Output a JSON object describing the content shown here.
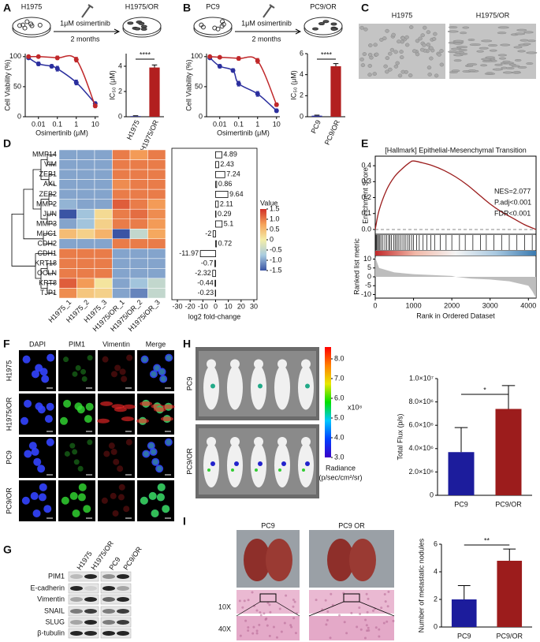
{
  "A": {
    "label": "A",
    "schematic": {
      "from": "H1975",
      "treatment": "1μM osimertinib",
      "duration": "2 months",
      "to": "H1975/OR"
    },
    "viability": {
      "type": "line",
      "ylabel": "Cell Viability (%)",
      "xlabel": "Osimertinib (μM)",
      "xlog": true,
      "xlim": [
        0.002,
        15
      ],
      "ylim": [
        0,
        105
      ],
      "xticks": [
        0.01,
        0.1,
        1,
        10
      ],
      "yticks": [
        0,
        50,
        100
      ],
      "series": [
        {
          "color": "#2b2f9e",
          "x": [
            0.003,
            0.01,
            0.05,
            0.1,
            1,
            10
          ],
          "values": [
            98,
            88,
            84,
            80,
            57,
            22
          ],
          "errors": [
            2,
            3,
            3,
            4,
            4,
            3
          ]
        },
        {
          "color": "#c0282a",
          "x": [
            0.003,
            0.01,
            0.1,
            1,
            10
          ],
          "values": [
            100,
            100,
            98,
            95,
            18
          ],
          "errors": [
            2,
            2,
            3,
            4,
            3
          ]
        }
      ]
    },
    "ic50": {
      "type": "bar",
      "ylabel": "IC₅₀ (μM)",
      "categories": [
        "H1975",
        "H1975/OR"
      ],
      "values": [
        0.05,
        3.9
      ],
      "errors": [
        0.03,
        0.2
      ],
      "colors": [
        "#2b2f9e",
        "#b21f1f"
      ],
      "ylim": [
        0,
        5
      ],
      "yticks": [
        0,
        2,
        4
      ],
      "significance": "****"
    }
  },
  "B": {
    "label": "B",
    "schematic": {
      "from": "PC9",
      "treatment": "1μM osimertinib",
      "duration": "2 months",
      "to": "PC9/OR"
    },
    "viability": {
      "type": "line",
      "ylabel": "Cell Viability (%)",
      "xlabel": "Osimertinib (μM)",
      "xlog": true,
      "xlim": [
        0.002,
        15
      ],
      "ylim": [
        0,
        105
      ],
      "xticks": [
        0.01,
        0.1,
        1,
        10
      ],
      "yticks": [
        0,
        50,
        100
      ],
      "series": [
        {
          "color": "#2b2f9e",
          "x": [
            0.003,
            0.01,
            0.05,
            0.1,
            1,
            10
          ],
          "values": [
            98,
            84,
            77,
            55,
            38,
            10
          ],
          "errors": [
            2,
            3,
            3,
            4,
            4,
            3
          ]
        },
        {
          "color": "#c0282a",
          "x": [
            0.003,
            0.01,
            0.1,
            1,
            10
          ],
          "values": [
            100,
            99,
            97,
            93,
            20
          ],
          "errors": [
            2,
            2,
            3,
            4,
            3
          ]
        }
      ]
    },
    "ic50": {
      "type": "bar",
      "ylabel": "IC₅₀ (μM)",
      "categories": [
        "PC9",
        "PC9/OR"
      ],
      "values": [
        0.1,
        4.8
      ],
      "errors": [
        0.05,
        0.25
      ],
      "colors": [
        "#2b2f9e",
        "#b21f1f"
      ],
      "ylim": [
        0,
        6
      ],
      "yticks": [
        0,
        2,
        4,
        6
      ],
      "significance": "****"
    }
  },
  "C": {
    "label": "C",
    "images": [
      "H1975",
      "H1975/OR"
    ]
  },
  "D": {
    "label": "D",
    "heatmap": {
      "type": "heatmap",
      "rows": [
        "MMP14",
        "VIM",
        "ZEB1",
        "AXL",
        "ZEB2",
        "MMP2",
        "JUN",
        "MMP3",
        "MUC1",
        "CDH2",
        "CDH1",
        "KRT18",
        "OCLN",
        "KRT8",
        "TJP1"
      ],
      "columns": [
        "H1975_1",
        "H1975_2",
        "H1975_3",
        "H1975/OR_1",
        "H1975/OR_2",
        "H1975/OR_3"
      ],
      "values": [
        [
          -1,
          -1,
          -1,
          1,
          0.8,
          1
        ],
        [
          -1,
          -1,
          -1,
          1,
          1,
          1
        ],
        [
          -1,
          -1,
          -1,
          1,
          1,
          1
        ],
        [
          -1,
          -1,
          -1,
          0.9,
          1,
          1
        ],
        [
          -1,
          -1,
          -1,
          1,
          1,
          1
        ],
        [
          -0.9,
          -1,
          -1,
          1.2,
          1,
          0.8
        ],
        [
          -1.5,
          -0.8,
          0.2,
          1,
          1.1,
          0.9
        ],
        [
          -1,
          -0.8,
          0.3,
          1,
          1,
          0.8
        ],
        [
          0.5,
          0.3,
          0.6,
          -1.5,
          -0.5,
          0.7
        ],
        [
          -1,
          -1,
          -1,
          1,
          1,
          1
        ],
        [
          1,
          1,
          1,
          -1,
          -1,
          -1
        ],
        [
          1,
          1,
          1,
          -1,
          -1,
          -1
        ],
        [
          1,
          1,
          1,
          -1,
          -1,
          -1
        ],
        [
          1.2,
          0.8,
          0.1,
          -1,
          -0.8,
          -0.5
        ],
        [
          0.9,
          0.4,
          0.3,
          -1,
          -1.2,
          -0.5
        ]
      ],
      "colors": [
        "#3a54a4",
        "#a9cce0",
        "#f4eea8",
        "#f5a35a",
        "#d12f27"
      ],
      "zlim": [
        -1.5,
        1.5
      ],
      "legend_title": "Value",
      "legend_ticks": [
        1.5,
        {
          "value": 1,
          "label": "1.0"
        },
        0.5,
        0,
        -0.5,
        {
          "value": -1,
          "label": "-1.0"
        },
        -1.5
      ]
    },
    "foldchange": {
      "type": "bar",
      "orientation": "horizontal",
      "values": [
        4.89,
        2.43,
        7.24,
        0.86,
        9.64,
        2.11,
        0.29,
        5.1,
        -2,
        0.72,
        -11.97,
        -0.7,
        -2.32,
        -0.44,
        -0.23
      ],
      "xlim": [
        -30,
        30
      ],
      "xticks": [
        -30,
        -20,
        -10,
        0,
        10,
        20,
        30
      ],
      "xlabel": "log2 fold-change"
    }
  },
  "E": {
    "label": "E",
    "gsea": {
      "type": "line",
      "title": "[Hallmark] Epithelial-Mesenchymal Transition",
      "color": "#9b1c1c",
      "ylabel": "Enrichment Score",
      "ylim": [
        -0.03,
        0.45
      ],
      "yticks": [
        {
          "value": 0,
          "label": "0.0"
        },
        0.1,
        0.2,
        0.3,
        0.4
      ],
      "xlim": [
        0,
        4200
      ],
      "xticks": [
        0,
        1000,
        2000,
        3000,
        4000
      ],
      "xlabel": "Rank in Ordered Dataset",
      "x": [
        0,
        100,
        300,
        500,
        700,
        900,
        1000,
        1200,
        1500,
        1800,
        2100,
        2400,
        2700,
        3000,
        3300,
        3600,
        3900,
        4200
      ],
      "values": [
        0,
        0.12,
        0.25,
        0.33,
        0.38,
        0.42,
        0.43,
        0.42,
        0.4,
        0.37,
        0.33,
        0.28,
        0.22,
        0.16,
        0.11,
        0.07,
        0.03,
        0
      ],
      "annotations": [
        "NES=2.077",
        "P.adj<0.001",
        "FDR<0.001"
      ],
      "hits": [
        20,
        40,
        60,
        90,
        120,
        150,
        200,
        250,
        300,
        350,
        380,
        420,
        480,
        520,
        560,
        600,
        650,
        700,
        750,
        800,
        850,
        900,
        950,
        1000,
        1080,
        1150,
        1250,
        1350,
        1450,
        1550,
        1700,
        1850,
        2000,
        2200,
        2350,
        2550,
        2750,
        2900,
        3100,
        3300,
        3500,
        3700,
        3900,
        4100
      ],
      "metric": {
        "ylabel": "Ranked list metric",
        "ylim": [
          -12,
          12
        ],
        "yticks": [
          10,
          5,
          0,
          -5,
          -10
        ],
        "color": "#bdbdbd",
        "x": [
          0,
          100,
          500,
          1000,
          1500,
          2000,
          2100,
          2500,
          3000,
          3500,
          4000,
          4100,
          4200
        ],
        "values": [
          11,
          5,
          2.5,
          1.5,
          1,
          0.5,
          0,
          -1,
          -1.5,
          -2.5,
          -5,
          -8,
          -12
        ]
      }
    }
  },
  "F": {
    "label": "F",
    "columns": [
      {
        "text": "DAPI",
        "color": "#1f2bd1"
      },
      {
        "text": "PIM1",
        "color": "#1e9e1e"
      },
      {
        "text": "Vimentin",
        "color": "#c01818"
      },
      {
        "text": "Merge",
        "color": "#222222"
      }
    ],
    "rows": [
      "H1975",
      "H1975/OR",
      "PC9",
      "PC9/OR"
    ]
  },
  "G": {
    "label": "G",
    "columns": [
      "H1975",
      "H1975/OR",
      "PC9",
      "PC9/OR"
    ],
    "rows": [
      "PIM1",
      "E-cadherin",
      "Vimentin",
      "SNAIL",
      "SLUG",
      "β-tubulin"
    ]
  },
  "H": {
    "label": "H",
    "rows": [
      "PC9",
      "PC9/OR"
    ],
    "colorbar": {
      "lim": [
        3,
        8.6
      ],
      "ticks": [
        {
          "value": 8,
          "label": "8.0"
        },
        {
          "value": 7,
          "label": "7.0"
        },
        {
          "value": 6,
          "label": "6.0"
        },
        {
          "value": 5,
          "label": "5.0"
        },
        {
          "value": 4,
          "label": "4.0"
        },
        {
          "value": 3,
          "label": "3.0"
        }
      ],
      "unit": "x10⁸",
      "title": "Radiance",
      "subtitle": "(p/sec/cm²/sr)"
    },
    "flux": {
      "type": "bar",
      "ylabel": "Total Flux (p/s)",
      "categories": [
        "PC9",
        "PC9/OR"
      ],
      "values": [
        3700000,
        7400000
      ],
      "errors": [
        2100000,
        2000000
      ],
      "colors": [
        "#1c1c9c",
        "#9c1c1c"
      ],
      "ylim": [
        0,
        10000000
      ],
      "yticks": [
        0,
        {
          "value": 2000000,
          "label": "2.0×10⁶"
        },
        {
          "value": 4000000,
          "label": "4.0×10⁶"
        },
        {
          "value": 6000000,
          "label": "6.0×10⁶"
        },
        {
          "value": 8000000,
          "label": "8.0×10⁶"
        },
        {
          "value": 10000000,
          "label": "1.0×10⁷"
        }
      ],
      "significance": "*"
    }
  },
  "I": {
    "label": "I",
    "photos": [
      "PC9",
      "PC9 OR"
    ],
    "magnifications": [
      "10X",
      "40X"
    ],
    "nodules": {
      "type": "bar",
      "ylabel": "Number of metastatic nodules",
      "categories": [
        "PC9",
        "PC9/OR"
      ],
      "values": [
        2,
        4.8
      ],
      "errors": [
        1,
        0.85
      ],
      "colors": [
        "#1c1c9c",
        "#9c1c1c"
      ],
      "ylim": [
        0,
        6
      ],
      "yticks": [
        0,
        2,
        4,
        6
      ],
      "significance": "**"
    }
  }
}
